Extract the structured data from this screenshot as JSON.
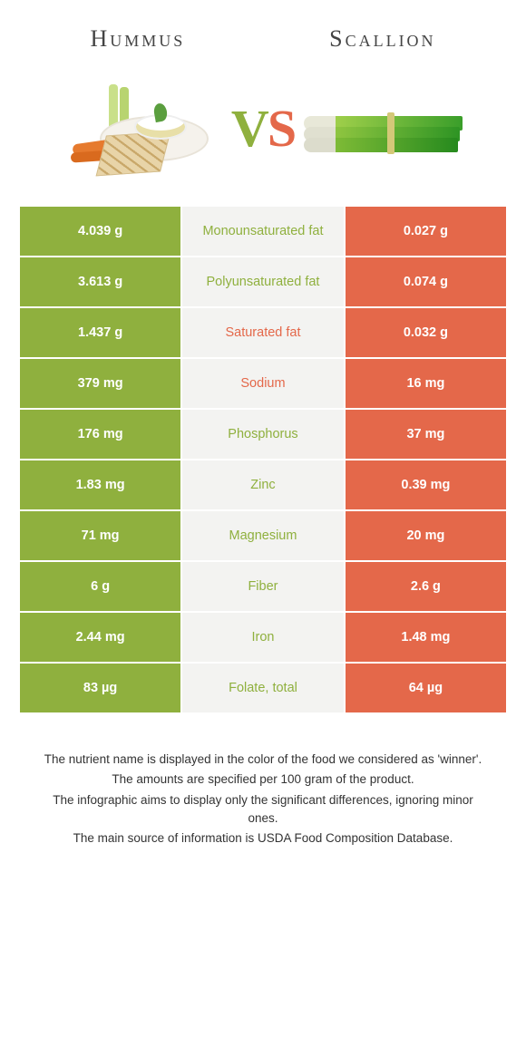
{
  "header": {
    "left_title": "Hummus",
    "right_title": "Scallion"
  },
  "vs": {
    "v": "V",
    "s": "S"
  },
  "colors": {
    "left": "#8fb03e",
    "right": "#e4684a",
    "mid_bg": "#f3f3f1",
    "border": "#ffffff"
  },
  "table": {
    "rows": [
      {
        "left": "4.039 g",
        "label": "Monounsaturated fat",
        "right": "0.027 g",
        "winner": "left"
      },
      {
        "left": "3.613 g",
        "label": "Polyunsaturated fat",
        "right": "0.074 g",
        "winner": "left"
      },
      {
        "left": "1.437 g",
        "label": "Saturated fat",
        "right": "0.032 g",
        "winner": "right"
      },
      {
        "left": "379 mg",
        "label": "Sodium",
        "right": "16 mg",
        "winner": "right"
      },
      {
        "left": "176 mg",
        "label": "Phosphorus",
        "right": "37 mg",
        "winner": "left"
      },
      {
        "left": "1.83 mg",
        "label": "Zinc",
        "right": "0.39 mg",
        "winner": "left"
      },
      {
        "left": "71 mg",
        "label": "Magnesium",
        "right": "20 mg",
        "winner": "left"
      },
      {
        "left": "6 g",
        "label": "Fiber",
        "right": "2.6 g",
        "winner": "left"
      },
      {
        "left": "2.44 mg",
        "label": "Iron",
        "right": "1.48 mg",
        "winner": "left"
      },
      {
        "left": "83 µg",
        "label": "Folate, total",
        "right": "64 µg",
        "winner": "left"
      }
    ]
  },
  "footnotes": [
    "The nutrient name is displayed in the color of the food we considered as 'winner'.",
    "The amounts are specified per 100 gram of the product.",
    "The infographic aims to display only the significant differences, ignoring minor ones.",
    "The main source of information is USDA Food Composition Database."
  ]
}
